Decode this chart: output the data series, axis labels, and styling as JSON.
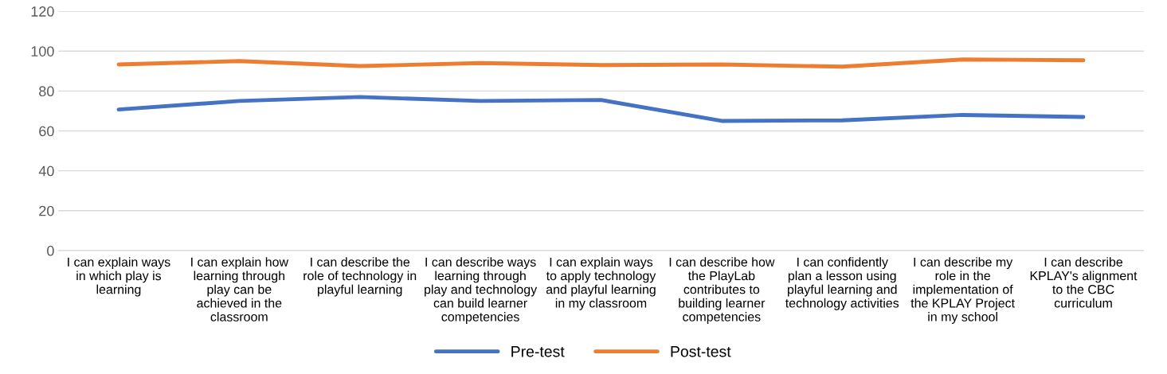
{
  "chart_data": {
    "type": "line",
    "categories": [
      "I can explain ways in which play is learning",
      "I can explain how learning through play can be achieved in the classroom",
      "I can describe the role of technology in playful learning",
      "I can describe ways learning through play and technology can build learner competencies",
      "I can explain ways to apply technology and playful learning in my classroom",
      "I can describe how the PlayLab contributes to building learner competencies",
      "I can confidently plan a lesson using playful learning and technology activities",
      "I can describe my role in the implementation of the KPLAY Project in my school",
      "I can describe KPLAY's alignment to the CBC curriculum"
    ],
    "series": [
      {
        "name": "Pre-test",
        "color": "#4472c4",
        "values": [
          70.7,
          75,
          77,
          75,
          75.5,
          65,
          65.3,
          68,
          67
        ]
      },
      {
        "name": "Post-test",
        "color": "#ed7d31",
        "values": [
          93.3,
          95,
          92.5,
          94,
          93,
          93.3,
          92.2,
          95.8,
          95.4
        ]
      }
    ],
    "ylim": [
      0,
      120
    ],
    "yticks": [
      0,
      20,
      40,
      60,
      80,
      100,
      120
    ],
    "grid": "y",
    "legend": "bottom"
  }
}
